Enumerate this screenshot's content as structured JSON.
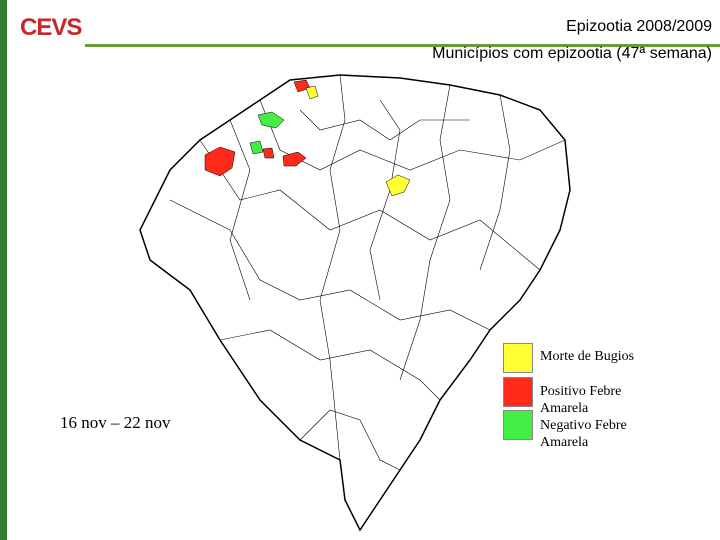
{
  "header": {
    "title": "Epizootia 2008/2009",
    "subtitle": "Municípios com epizootia (47ª semana)",
    "logo": "CEVS"
  },
  "period": "16 nov – 22 nov",
  "legend": [
    {
      "label": "Morte de Bugios",
      "color": "#ffff33"
    },
    {
      "label": "Positivo Febre Amarela",
      "color": "#ff2a1a"
    },
    {
      "label": "Negativo Febre Amarela",
      "color": "#44ee44"
    }
  ]
}
